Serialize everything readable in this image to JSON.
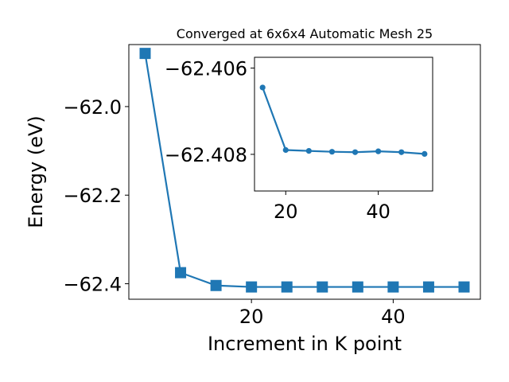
{
  "chart_data": [
    {
      "type": "line",
      "title": "Converged at 6x6x4 Automatic Mesh 25",
      "xlabel": "Increment in K point",
      "ylabel": "Energy (eV)",
      "xlim": [
        2.7,
        52.3
      ],
      "ylim": [
        -62.435,
        -61.86
      ],
      "xticks": [
        20,
        40
      ],
      "yticks": [
        -62.0,
        -62.2,
        -62.4
      ],
      "ytick_labels": [
        "−62.0",
        "−62.2",
        "−62.4"
      ],
      "marker": "square",
      "color": "#1f77b4",
      "series": [
        {
          "x": [
            5,
            10,
            15,
            20,
            25,
            30,
            35,
            40,
            45,
            50
          ],
          "y": [
            -61.88,
            -62.375,
            -62.404,
            -62.4073,
            -62.4073,
            -62.4073,
            -62.4073,
            -62.4073,
            -62.4073,
            -62.4073
          ]
        }
      ]
    },
    {
      "type": "line",
      "inset": true,
      "xlim": [
        13.25,
        51.75
      ],
      "ylim": [
        -62.40575,
        -62.40885
      ],
      "y_inverted_display": true,
      "xticks": [
        20,
        40
      ],
      "yticks": [
        -62.408,
        -62.406
      ],
      "ytick_labels": [
        "−62.408",
        "−62.406"
      ],
      "marker": "circle",
      "color": "#1f77b4",
      "series": [
        {
          "x": [
            15,
            20,
            25,
            30,
            35,
            40,
            45,
            50
          ],
          "y": [
            -62.40645,
            -62.4079,
            -62.40792,
            -62.40794,
            -62.40795,
            -62.40793,
            -62.40795,
            -62.40799
          ]
        }
      ]
    }
  ]
}
